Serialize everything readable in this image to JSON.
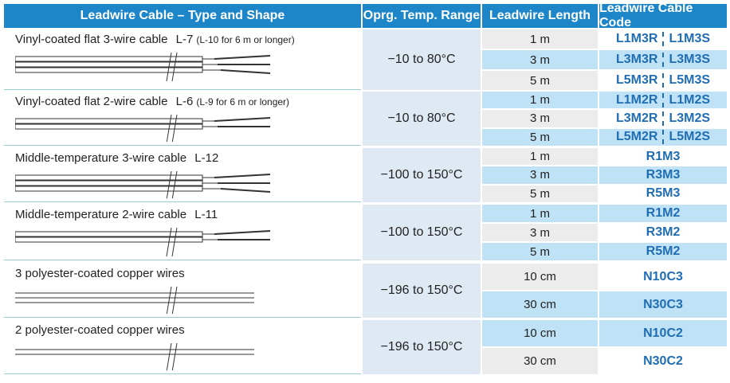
{
  "header": {
    "columns": [
      "Leadwire Cable – Type and Shape",
      "Oprg. Temp. Range",
      "Leadwire Length",
      "Leadwire Cable Code"
    ]
  },
  "groups": [
    {
      "name": "Vinyl-coated flat 3-wire cable",
      "model": "L-7",
      "note": "(L-10 for 6 m or longer)",
      "temp": "−10 to 80°C",
      "rows": [
        {
          "length": "1 m",
          "codes": [
            "L1M3R",
            "L1M3S"
          ]
        },
        {
          "length": "3 m",
          "codes": [
            "L3M3R",
            "L3M3S"
          ]
        },
        {
          "length": "5 m",
          "codes": [
            "L5M3R",
            "L5M3S"
          ]
        }
      ]
    },
    {
      "name": "Vinyl-coated flat 2-wire cable",
      "model": "L-6",
      "note": "(L-9 for 6 m or longer)",
      "temp": "−10 to 80°C",
      "rows": [
        {
          "length": "1 m",
          "codes": [
            "L1M2R",
            "L1M2S"
          ]
        },
        {
          "length": "3 m",
          "codes": [
            "L3M2R",
            "L3M2S"
          ]
        },
        {
          "length": "5 m",
          "codes": [
            "L5M2R",
            "L5M2S"
          ]
        }
      ]
    },
    {
      "name": "Middle-temperature 3-wire cable",
      "model": "L-12",
      "temp": "−100 to 150°C",
      "rows": [
        {
          "length": "1 m",
          "codes": [
            "R1M3"
          ]
        },
        {
          "length": "3 m",
          "codes": [
            "R3M3"
          ]
        },
        {
          "length": "5 m",
          "codes": [
            "R5M3"
          ]
        }
      ]
    },
    {
      "name": "Middle-temperature 2-wire cable",
      "model": "L-11",
      "temp": "−100 to 150°C",
      "rows": [
        {
          "length": "1 m",
          "codes": [
            "R1M2"
          ]
        },
        {
          "length": "3 m",
          "codes": [
            "R3M2"
          ]
        },
        {
          "length": "5 m",
          "codes": [
            "R5M2"
          ]
        }
      ]
    },
    {
      "name": "3 polyester-coated copper wires",
      "temp": "−196 to 150°C",
      "rows": [
        {
          "length": "10 cm",
          "codes": [
            "N10C3"
          ]
        },
        {
          "length": "30 cm",
          "codes": [
            "N30C3"
          ]
        }
      ]
    },
    {
      "name": "2 polyester-coated copper wires",
      "temp": "−196 to 150°C",
      "rows": [
        {
          "length": "10 cm",
          "codes": [
            "N10C2"
          ]
        },
        {
          "length": "30 cm",
          "codes": [
            "N30C2"
          ]
        }
      ]
    }
  ]
}
